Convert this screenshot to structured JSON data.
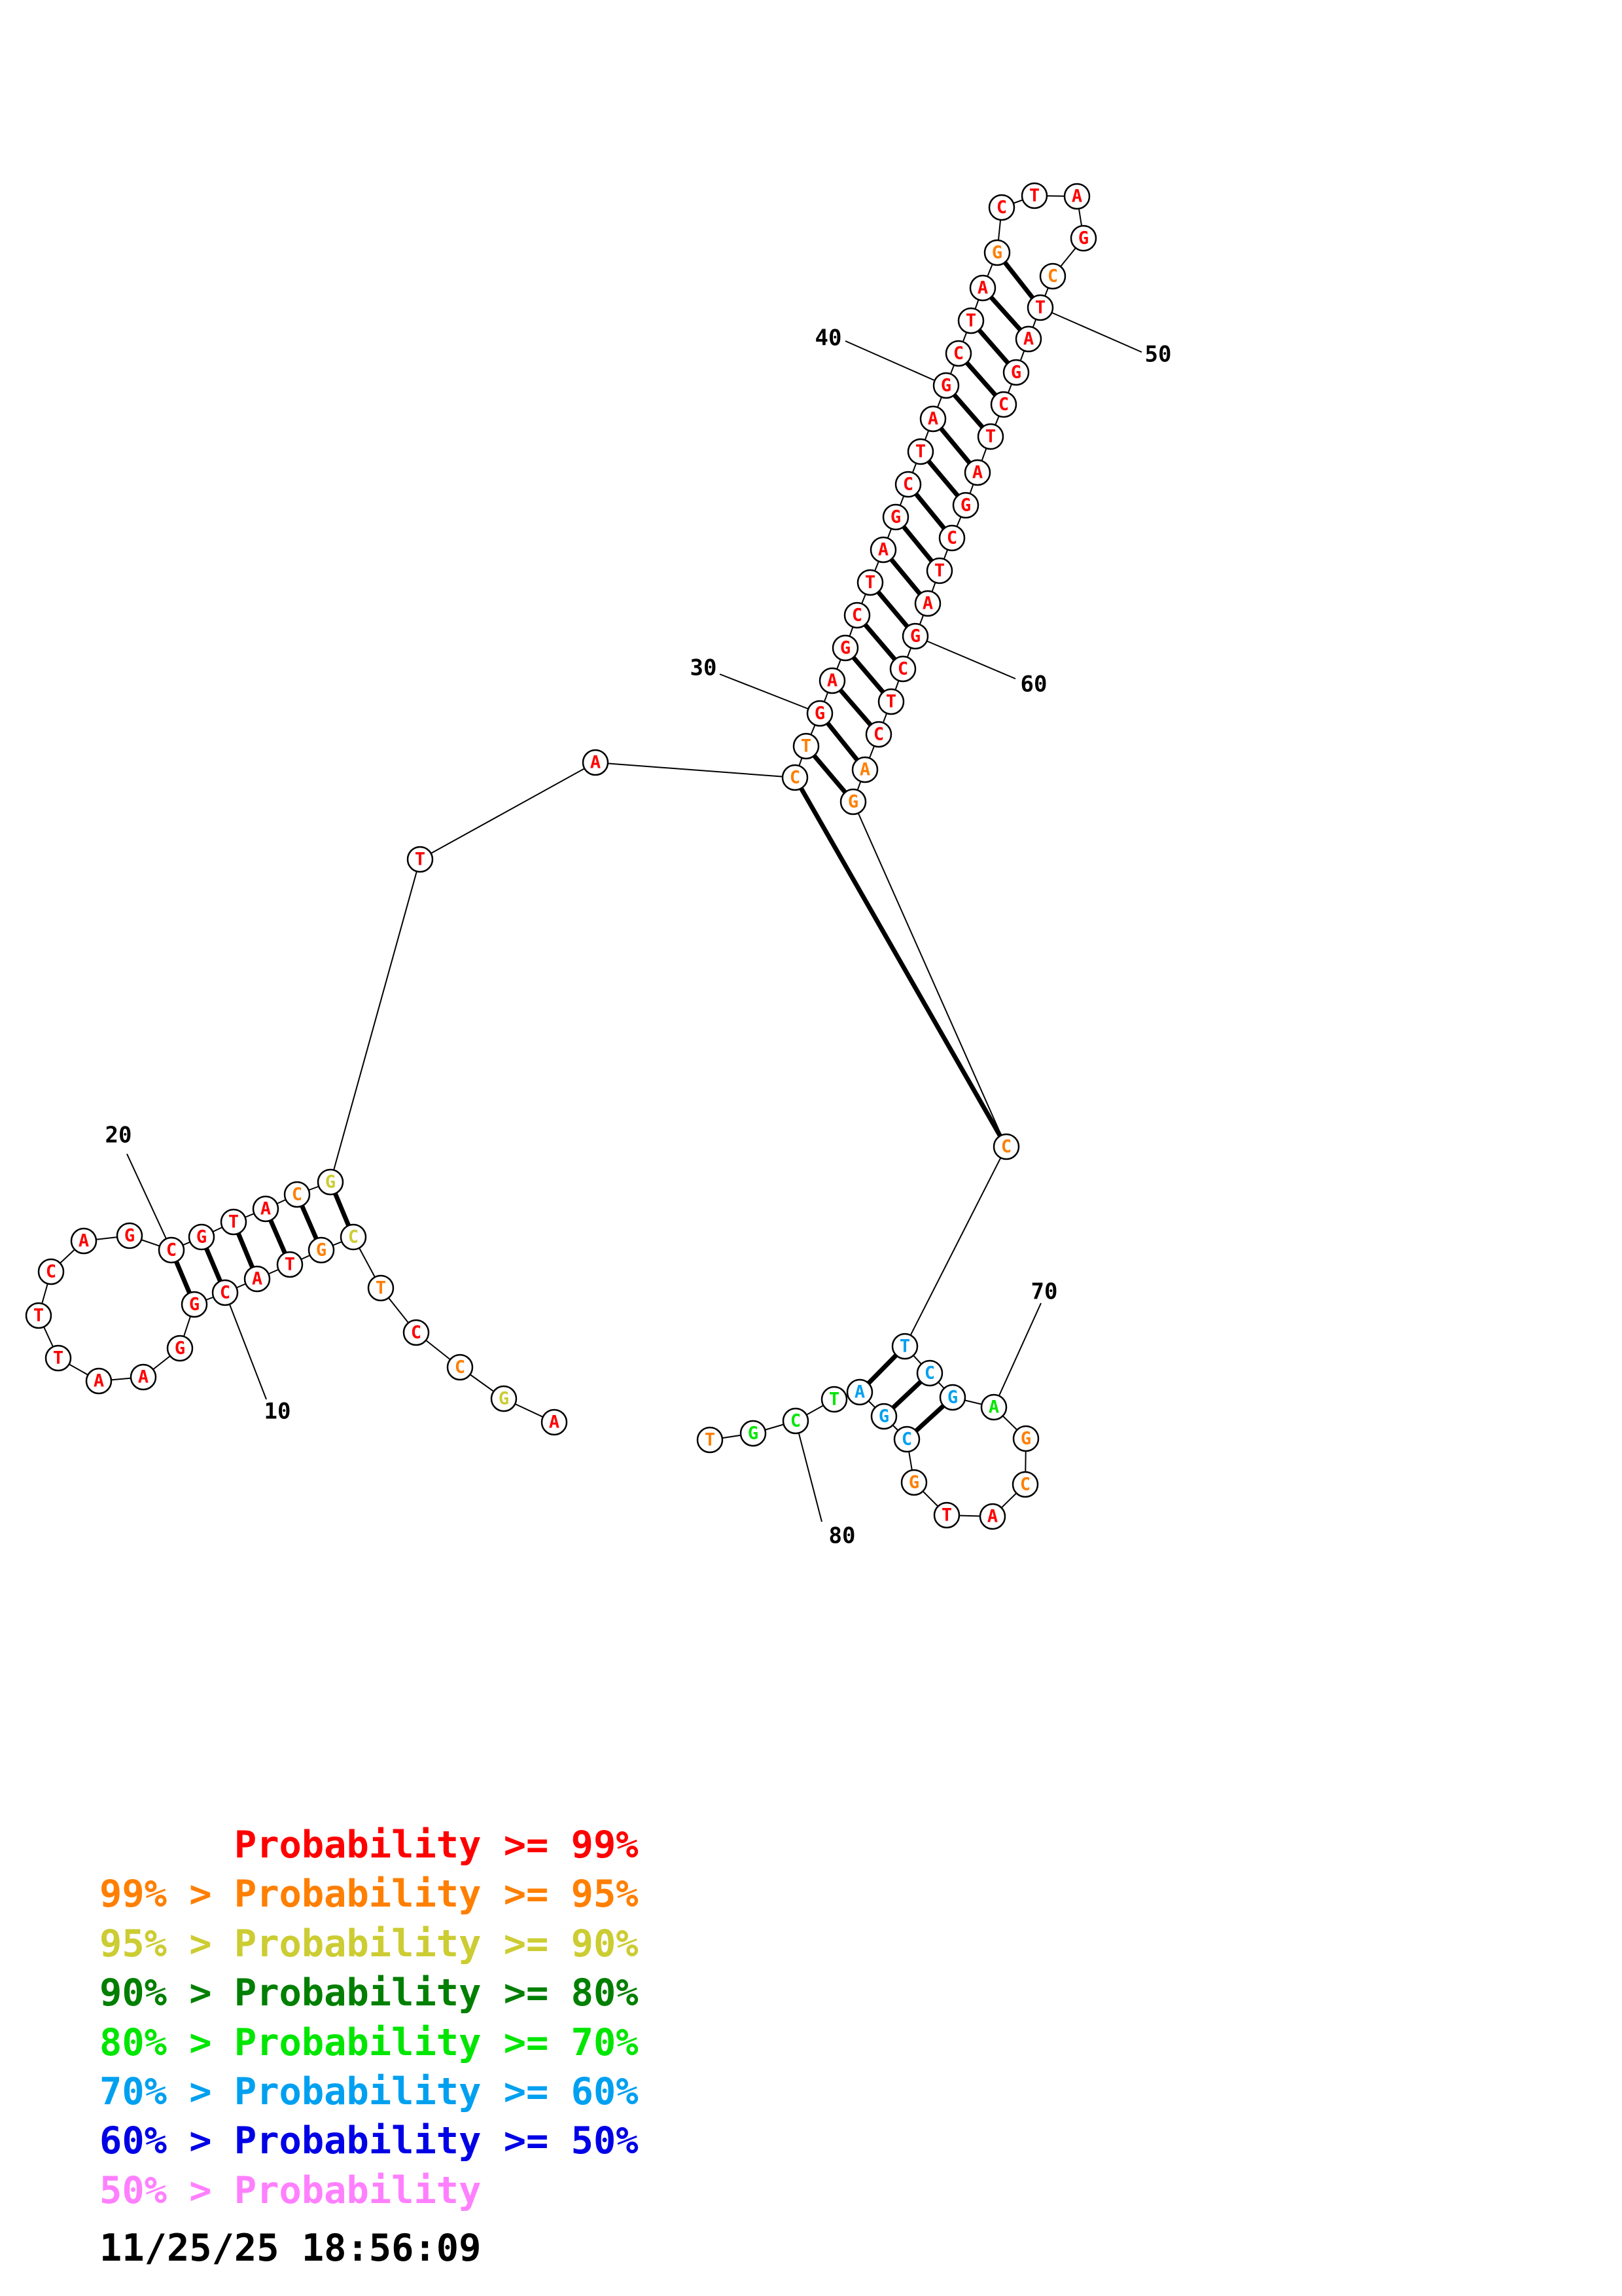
{
  "colors": {
    "red": "#ff0000",
    "orange": "#ff7f00",
    "yellow": "#cccc33",
    "dark_green": "#007f00",
    "green": "#00e600",
    "cyan": "#00a0f0",
    "blue": "#0000e6",
    "pink": "#ff80ff"
  },
  "nucleotides": [
    {
      "n": 1,
      "base": "A",
      "color": "red"
    },
    {
      "n": 2,
      "base": "G",
      "color": "yellow"
    },
    {
      "n": 3,
      "base": "C",
      "color": "orange"
    },
    {
      "n": 4,
      "base": "C",
      "color": "red"
    },
    {
      "n": 5,
      "base": "T",
      "color": "orange"
    },
    {
      "n": 6,
      "base": "C",
      "color": "yellow"
    },
    {
      "n": 7,
      "base": "G",
      "color": "orange"
    },
    {
      "n": 8,
      "base": "T",
      "color": "red"
    },
    {
      "n": 9,
      "base": "A",
      "color": "red"
    },
    {
      "n": 10,
      "base": "C",
      "color": "red"
    },
    {
      "n": 11,
      "base": "G",
      "color": "red"
    },
    {
      "n": 12,
      "base": "G",
      "color": "red"
    },
    {
      "n": 13,
      "base": "A",
      "color": "red"
    },
    {
      "n": 14,
      "base": "A",
      "color": "red"
    },
    {
      "n": 15,
      "base": "T",
      "color": "red"
    },
    {
      "n": 16,
      "base": "T",
      "color": "red"
    },
    {
      "n": 17,
      "base": "C",
      "color": "red"
    },
    {
      "n": 18,
      "base": "A",
      "color": "red"
    },
    {
      "n": 19,
      "base": "G",
      "color": "red"
    },
    {
      "n": 20,
      "base": "C",
      "color": "red"
    },
    {
      "n": 21,
      "base": "G",
      "color": "red"
    },
    {
      "n": 22,
      "base": "T",
      "color": "red"
    },
    {
      "n": 23,
      "base": "A",
      "color": "red"
    },
    {
      "n": 24,
      "base": "C",
      "color": "orange"
    },
    {
      "n": 25,
      "base": "G",
      "color": "yellow"
    },
    {
      "n": 26,
      "base": "T",
      "color": "red"
    },
    {
      "n": 27,
      "base": "A",
      "color": "red"
    },
    {
      "n": 28,
      "base": "C",
      "color": "orange"
    },
    {
      "n": 29,
      "base": "T",
      "color": "orange"
    },
    {
      "n": 30,
      "base": "G",
      "color": "red"
    },
    {
      "n": 31,
      "base": "A",
      "color": "red"
    },
    {
      "n": 32,
      "base": "G",
      "color": "red"
    },
    {
      "n": 33,
      "base": "C",
      "color": "red"
    },
    {
      "n": 34,
      "base": "T",
      "color": "red"
    },
    {
      "n": 35,
      "base": "A",
      "color": "red"
    },
    {
      "n": 36,
      "base": "G",
      "color": "red"
    },
    {
      "n": 37,
      "base": "C",
      "color": "red"
    },
    {
      "n": 38,
      "base": "T",
      "color": "red"
    },
    {
      "n": 39,
      "base": "A",
      "color": "red"
    },
    {
      "n": 40,
      "base": "G",
      "color": "red"
    },
    {
      "n": 41,
      "base": "C",
      "color": "red"
    },
    {
      "n": 42,
      "base": "T",
      "color": "red"
    },
    {
      "n": 43,
      "base": "A",
      "color": "red"
    },
    {
      "n": 44,
      "base": "G",
      "color": "orange"
    },
    {
      "n": 45,
      "base": "C",
      "color": "red"
    },
    {
      "n": 46,
      "base": "T",
      "color": "red"
    },
    {
      "n": 47,
      "base": "A",
      "color": "red"
    },
    {
      "n": 48,
      "base": "G",
      "color": "red"
    },
    {
      "n": 49,
      "base": "C",
      "color": "orange"
    },
    {
      "n": 50,
      "base": "T",
      "color": "red"
    },
    {
      "n": 51,
      "base": "A",
      "color": "red"
    },
    {
      "n": 52,
      "base": "G",
      "color": "red"
    },
    {
      "n": 53,
      "base": "C",
      "color": "red"
    },
    {
      "n": 54,
      "base": "T",
      "color": "red"
    },
    {
      "n": 55,
      "base": "A",
      "color": "red"
    },
    {
      "n": 56,
      "base": "G",
      "color": "red"
    },
    {
      "n": 57,
      "base": "C",
      "color": "red"
    },
    {
      "n": 58,
      "base": "T",
      "color": "red"
    },
    {
      "n": 59,
      "base": "A",
      "color": "red"
    },
    {
      "n": 60,
      "base": "G",
      "color": "red"
    },
    {
      "n": 61,
      "base": "C",
      "color": "red"
    },
    {
      "n": 62,
      "base": "T",
      "color": "red"
    },
    {
      "n": 63,
      "base": "C",
      "color": "red"
    },
    {
      "n": 64,
      "base": "A",
      "color": "orange"
    },
    {
      "n": 65,
      "base": "G",
      "color": "orange"
    },
    {
      "n": 66,
      "base": "C",
      "color": "orange"
    },
    {
      "n": 67,
      "base": "T",
      "color": "cyan"
    },
    {
      "n": 68,
      "base": "C",
      "color": "cyan"
    },
    {
      "n": 69,
      "base": "G",
      "color": "cyan"
    },
    {
      "n": 70,
      "base": "A",
      "color": "green"
    },
    {
      "n": 71,
      "base": "G",
      "color": "orange"
    },
    {
      "n": 72,
      "base": "C",
      "color": "orange"
    },
    {
      "n": 73,
      "base": "A",
      "color": "red"
    },
    {
      "n": 74,
      "base": "T",
      "color": "red"
    },
    {
      "n": 75,
      "base": "G",
      "color": "orange"
    },
    {
      "n": 76,
      "base": "C",
      "color": "cyan"
    },
    {
      "n": 77,
      "base": "G",
      "color": "cyan"
    },
    {
      "n": 78,
      "base": "A",
      "color": "cyan"
    },
    {
      "n": 79,
      "base": "T",
      "color": "green"
    },
    {
      "n": 80,
      "base": "C",
      "color": "green"
    },
    {
      "n": 81,
      "base": "G",
      "color": "green"
    },
    {
      "n": 82,
      "base": "T",
      "color": "orange"
    }
  ],
  "base_pairs": [
    [
      6,
      25
    ],
    [
      7,
      24
    ],
    [
      8,
      23
    ],
    [
      9,
      22
    ],
    [
      10,
      21
    ],
    [
      11,
      20
    ],
    [
      28,
      66
    ],
    [
      29,
      65
    ],
    [
      30,
      64
    ],
    [
      31,
      63
    ],
    [
      32,
      62
    ],
    [
      33,
      61
    ],
    [
      34,
      60
    ],
    [
      35,
      59
    ],
    [
      36,
      58
    ],
    [
      37,
      57
    ],
    [
      38,
      56
    ],
    [
      39,
      55
    ],
    [
      40,
      54
    ],
    [
      41,
      53
    ],
    [
      42,
      52
    ],
    [
      43,
      51
    ],
    [
      44,
      50
    ],
    [
      67,
      78
    ],
    [
      68,
      77
    ],
    [
      69,
      76
    ]
  ],
  "position_labels": [
    {
      "n": 10,
      "text": "10"
    },
    {
      "n": 20,
      "text": "20"
    },
    {
      "n": 30,
      "text": "30"
    },
    {
      "n": 40,
      "text": "40"
    },
    {
      "n": 50,
      "text": "50"
    },
    {
      "n": 60,
      "text": "60"
    },
    {
      "n": 70,
      "text": "70"
    },
    {
      "n": 80,
      "text": "80"
    }
  ],
  "legend": [
    {
      "prefix": "    ",
      "text": "Probability >= 99%",
      "color": "red"
    },
    {
      "prefix": "99% > ",
      "text": "Probability >= 95%",
      "color": "orange"
    },
    {
      "prefix": "95% > ",
      "text": "Probability >= 90%",
      "color": "yellow"
    },
    {
      "prefix": "90% > ",
      "text": "Probability >= 80%",
      "color": "dark_green"
    },
    {
      "prefix": "80% > ",
      "text": "Probability >= 70%",
      "color": "green"
    },
    {
      "prefix": "70% > ",
      "text": "Probability >= 60%",
      "color": "cyan"
    },
    {
      "prefix": "60% > ",
      "text": "Probability >= 50%",
      "color": "blue"
    },
    {
      "prefix": "50% > ",
      "text": "Probability",
      "color": "pink"
    }
  ],
  "timestamp": "11/25/25 18:56:09"
}
